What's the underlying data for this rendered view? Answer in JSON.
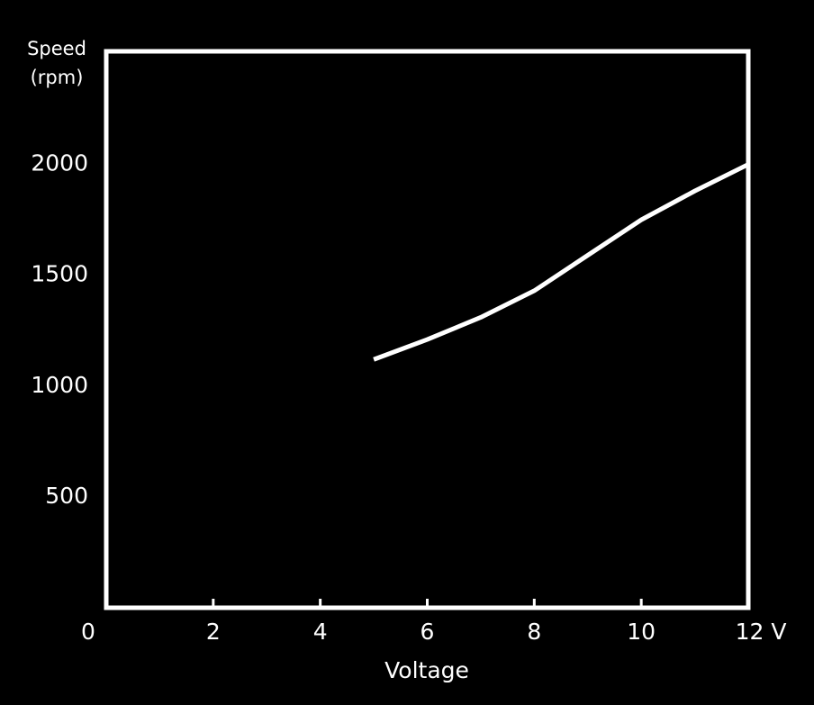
{
  "chart_data": {
    "type": "line",
    "x_label": "Voltage",
    "y_label": "Speed (rpm)",
    "x": [
      5,
      6,
      7,
      8,
      9,
      10,
      11,
      12
    ],
    "series": [
      {
        "name": "Speed",
        "color": "#ffffff",
        "values": [
          1120,
          1210,
          1310,
          1430,
          1590,
          1750,
          1880,
          2000
        ]
      }
    ],
    "xlim": [
      0,
      12
    ],
    "xticks": [
      0,
      2,
      4,
      6,
      8,
      10,
      {
        "value": 12,
        "label": "12 V"
      }
    ],
    "ylim": [
      0,
      2510
    ],
    "yticks": [
      500,
      1000,
      1500,
      2000
    ],
    "grid": true
  }
}
